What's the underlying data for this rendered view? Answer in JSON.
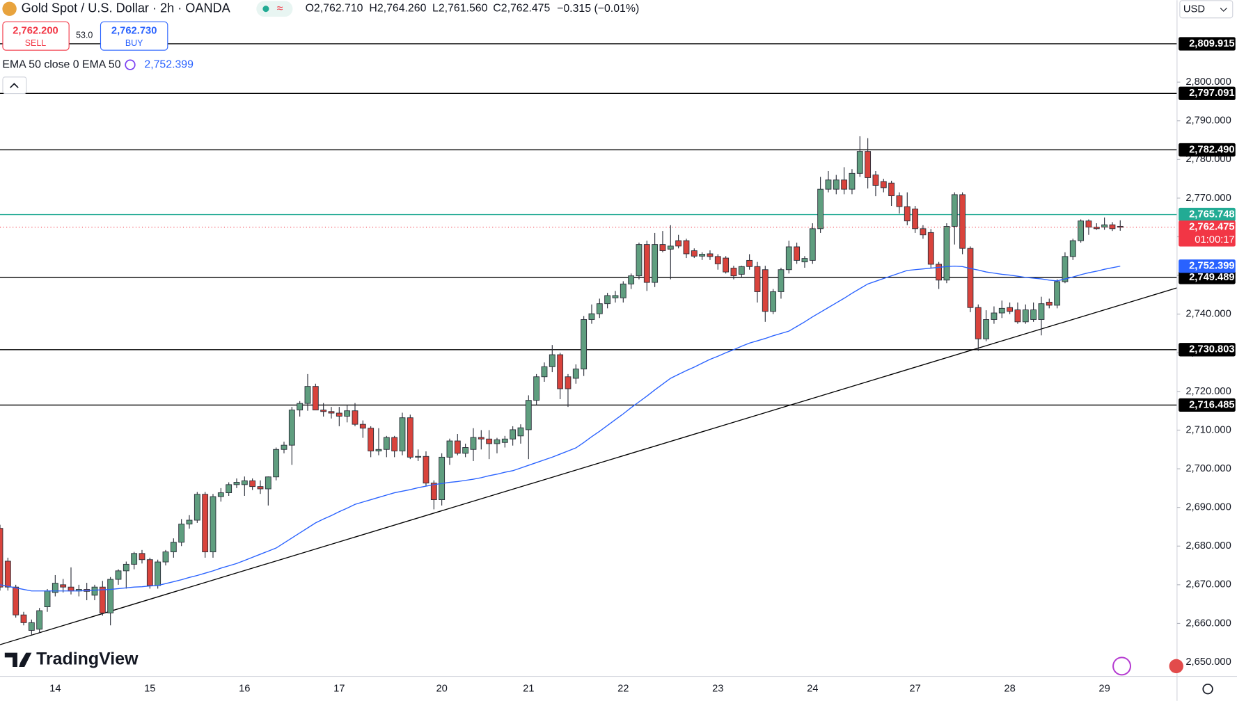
{
  "header": {
    "symbol": "Gold Spot / U.S. Dollar · 2h · OANDA",
    "ohlc": [
      {
        "key": "O",
        "value": "2,762.710"
      },
      {
        "key": "H",
        "value": "2,764.260"
      },
      {
        "key": "L",
        "value": "2,761.560"
      },
      {
        "key": "C",
        "value": "2,762.475"
      }
    ],
    "change": "−0.315 (−0.01%)",
    "sell_price": "2,762.200",
    "sell_label": "SELL",
    "spread": "53.0",
    "buy_price": "2,762.730",
    "buy_label": "BUY",
    "indicator": "EMA 50 close 0 EMA 50",
    "indicator_value": "2,752.399",
    "currency": "USD",
    "brand": "TradingView"
  },
  "chart_data": {
    "type": "candlestick",
    "categories": [
      null,
      null,
      null,
      null,
      null,
      null,
      null,
      "14",
      null,
      null,
      null,
      null,
      null,
      null,
      null,
      null,
      null,
      null,
      null,
      "15",
      null,
      null,
      null,
      null,
      null,
      null,
      null,
      null,
      null,
      null,
      null,
      "16",
      null,
      null,
      null,
      null,
      null,
      null,
      null,
      null,
      null,
      null,
      null,
      "17",
      null,
      null,
      null,
      null,
      null,
      null,
      null,
      null,
      null,
      null,
      null,
      null,
      "20",
      null,
      null,
      null,
      null,
      null,
      null,
      null,
      null,
      null,
      null,
      "21",
      null,
      null,
      null,
      null,
      null,
      null,
      null,
      null,
      null,
      null,
      null,
      "22",
      null,
      null,
      null,
      null,
      null,
      null,
      null,
      null,
      null,
      null,
      null,
      "23",
      null,
      null,
      null,
      null,
      null,
      null,
      null,
      null,
      null,
      null,
      null,
      "24",
      null,
      null,
      null,
      null,
      null,
      null,
      null,
      null,
      null,
      null,
      null,
      null,
      "27",
      null,
      null,
      null,
      null,
      null,
      null,
      null,
      null,
      null,
      null,
      null,
      "28",
      null,
      null,
      null,
      null,
      null,
      null,
      null,
      null,
      null,
      null,
      null,
      "29",
      null,
      null
    ],
    "open": [
      2684.6,
      2676.1,
      2669.4,
      2662.2,
      2658.2,
      2658.5,
      2664.3,
      2668,
      2670,
      2669.4,
      2668.4,
      2668.8,
      2667.3,
      2669.4,
      2662.7,
      2671.4,
      2673.6,
      2675.3,
      2678.1,
      2676.5,
      2669.8,
      2675.9,
      2678.5,
      2681,
      2685.7,
      2686.7,
      2693.4,
      2678.5,
      2692.8,
      2693.8,
      2695.9,
      2695.9,
      2696.9,
      2695.4,
      2694.8,
      2697.9,
      2705,
      2706.1,
      2715.2,
      2716.9,
      2721.3,
      2715.2,
      2714.8,
      2714.4,
      2713.6,
      2715,
      2711.5,
      2710.5,
      2704.6,
      2705,
      2708.1,
      2704.6,
      2713.2,
      2703,
      2703.2,
      2696.3,
      2692,
      2703,
      2707.2,
      2704,
      2705,
      2708.1,
      2707.7,
      2706.5,
      2706.8,
      2707.7,
      2708.5,
      2710.1,
      2717.7,
      2723.8,
      2726.4,
      2729.5,
      2723.8,
      2723.4,
      2725.8,
      2738.6,
      2740.1,
      2742.7,
      2744.2,
      2744.2,
      2747.8,
      2749.9,
      2758,
      2748.2,
      2758,
      2756.8,
      2759,
      2759,
      2756.4,
      2755,
      2755.6,
      2754.9,
      2754.5,
      2751.9,
      2750.3,
      2753.9,
      2752.3,
      2751.5,
      2740.7,
      2745.8,
      2751.5,
      2757.4,
      2753.5,
      2753.9,
      2762.1,
      2772.3,
      2772.3,
      2774.7,
      2772.3,
      2776.4,
      2782.1,
      2776,
      2774.3,
      2773.9,
      2770.6,
      2767.8,
      2767.2,
      2762.1,
      2761.1,
      2752.9,
      2748.8,
      2762.7,
      2770.9,
      2757,
      2741.7,
      2733.6,
      2738.6,
      2740.3,
      2741.7,
      2741.1,
      2738,
      2738.6,
      2738.6,
      2743.1,
      2742.3,
      2748.4,
      2754.9,
      2759,
      2764.1,
      2762.5,
      2762.5,
      2763.1,
      2762.71
    ],
    "high": [
      2685.5,
      2677,
      2670,
      2663,
      2661,
      2664,
      2668.9,
      2672.5,
      2671.5,
      2674.5,
      2670,
      2670.5,
      2670,
      2671,
      2672,
      2674,
      2676,
      2678.5,
      2679,
      2677,
      2676.5,
      2679,
      2682,
      2687,
      2688,
      2694,
      2694,
      2693.5,
      2695,
      2696.5,
      2697.5,
      2698,
      2697.5,
      2697,
      2698,
      2705.5,
      2707,
      2716,
      2717.5,
      2724.5,
      2722,
      2717,
      2716,
      2716,
      2716.5,
      2717,
      2712.5,
      2711,
      2710.5,
      2708.5,
      2708.5,
      2714.5,
      2714,
      2705,
      2704.5,
      2697,
      2704,
      2707.8,
      2709,
      2706.5,
      2710.5,
      2710,
      2710,
      2708,
      2708.5,
      2711,
      2711.5,
      2719,
      2724.5,
      2727.5,
      2732,
      2730,
      2724.5,
      2727,
      2739.5,
      2742.5,
      2744,
      2745.5,
      2746,
      2748.5,
      2750.5,
      2758.5,
      2759,
      2761,
      2761.5,
      2763,
      2760.5,
      2759.5,
      2757,
      2756,
      2756.5,
      2755.5,
      2755,
      2752.5,
      2752.5,
      2755.5,
      2753.5,
      2752.5,
      2746.5,
      2752,
      2759,
      2758.5,
      2755,
      2763.5,
      2775.5,
      2777,
      2776,
      2778,
      2777.5,
      2786,
      2785.5,
      2777,
      2775,
      2774.5,
      2771.5,
      2771.5,
      2768,
      2763,
      2762,
      2753.5,
      2763.5,
      2771.5,
      2771.5,
      2757.5,
      2742.5,
      2741,
      2742,
      2743.5,
      2743,
      2743,
      2742.5,
      2743,
      2744.5,
      2744,
      2749,
      2756,
      2759.5,
      2764.5,
      2764.5,
      2763.5,
      2765,
      2763.8,
      2764.26
    ],
    "low": [
      2668.5,
      2668.5,
      2661.5,
      2659.5,
      2657,
      2657.5,
      2663,
      2667,
      2668,
      2667.5,
      2667,
      2666,
      2666,
      2662,
      2659.5,
      2670,
      2669,
      2674,
      2675.5,
      2669,
      2669,
      2675,
      2677,
      2680,
      2684.5,
      2686,
      2677,
      2677,
      2691.5,
      2693,
      2695,
      2693,
      2694.5,
      2693.5,
      2690.5,
      2697,
      2704,
      2701,
      2713.5,
      2715,
      2715.5,
      2713.5,
      2713,
      2711,
      2712,
      2711,
      2708,
      2703,
      2703.5,
      2703,
      2703,
      2703.5,
      2702.5,
      2702,
      2695.5,
      2689.5,
      2690.5,
      2701,
      2703.5,
      2703,
      2702,
      2705,
      2702.5,
      2704,
      2705.5,
      2706,
      2706.5,
      2702.5,
      2716.5,
      2722.5,
      2725,
      2718,
      2716,
      2722,
      2724,
      2737.5,
      2739,
      2741.5,
      2743,
      2743,
      2746.5,
      2749,
      2746,
      2747,
      2756,
      2749,
      2757,
      2754.5,
      2754.5,
      2754,
      2754,
      2751.5,
      2750.5,
      2749,
      2749.5,
      2751.5,
      2743,
      2738,
      2740,
      2744,
      2750.5,
      2753,
      2752,
      2753,
      2761,
      2771.5,
      2771,
      2771,
      2771,
      2775.5,
      2772.5,
      2770.5,
      2771.5,
      2768,
      2766,
      2763,
      2761,
      2759.5,
      2752,
      2746.5,
      2748,
      2758,
      2755.5,
      2740.5,
      2730.5,
      2733,
      2737.5,
      2739,
      2740,
      2737.5,
      2737.5,
      2738,
      2734.5,
      2741.5,
      2741.5,
      2748,
      2754,
      2758.5,
      2760.5,
      2761.8,
      2761.8,
      2761.5,
      2761.56
    ],
    "close": [
      2669.4,
      2669.4,
      2662.2,
      2660.2,
      2660.2,
      2663.3,
      2668.4,
      2670.4,
      2669.4,
      2668.4,
      2668.8,
      2668.3,
      2669.4,
      2662.7,
      2671.4,
      2673.6,
      2675.3,
      2678.1,
      2676.5,
      2669.8,
      2675.9,
      2678.5,
      2681,
      2685.7,
      2686.7,
      2693.4,
      2678.5,
      2692.8,
      2693.8,
      2695.9,
      2696.5,
      2696.9,
      2695.4,
      2694.8,
      2697.9,
      2705,
      2706.1,
      2715.2,
      2716.9,
      2721.3,
      2715.2,
      2714.8,
      2714.4,
      2713.6,
      2715,
      2711.5,
      2710.5,
      2704.6,
      2705,
      2708.1,
      2704.6,
      2713.2,
      2703,
      2703.2,
      2696.3,
      2692,
      2703,
      2707.2,
      2704,
      2705.5,
      2708.1,
      2707.7,
      2706.5,
      2707.5,
      2707.7,
      2710.1,
      2710.6,
      2717.7,
      2723.8,
      2726.4,
      2729.5,
      2720.7,
      2720.7,
      2725.8,
      2738.6,
      2740.1,
      2742.7,
      2744.8,
      2744.8,
      2747.8,
      2749.9,
      2758,
      2748.2,
      2758,
      2756.4,
      2757.6,
      2757.6,
      2755.6,
      2755,
      2755.5,
      2754.9,
      2753,
      2750.9,
      2749.9,
      2752.3,
      2752.3,
      2745.8,
      2740.7,
      2745.8,
      2751.5,
      2757.4,
      2753.9,
      2754.4,
      2762.1,
      2772.3,
      2774.7,
      2774.7,
      2772.3,
      2776.4,
      2782.1,
      2775.3,
      2773.3,
      2772.7,
      2770.6,
      2767.8,
      2764.1,
      2762.1,
      2760.5,
      2752.9,
      2748.8,
      2762.7,
      2770.9,
      2757,
      2741.7,
      2733.6,
      2738.6,
      2740.3,
      2741.5,
      2740.7,
      2738,
      2741.1,
      2741.1,
      2742.7,
      2742.3,
      2748.4,
      2754.9,
      2759,
      2764.1,
      2762.5,
      2762.1,
      2763.1,
      2762.1,
      2762.475
    ],
    "up_color": "#5f9e7f",
    "down_color": "#d9433c",
    "ema": {
      "color": "#2962ff",
      "last_label": "2,752.399",
      "values": [
        2670,
        2669.6,
        2669.2,
        2668.8,
        2668.4,
        2668.4,
        2668.4,
        2668.4,
        2668.4,
        2668.4,
        2668.4,
        2668.5,
        2668.6,
        2668.7,
        2668.8,
        2669,
        2669.2,
        2669.4,
        2669.5,
        2669.7,
        2669.8,
        2670.3,
        2670.8,
        2671.3,
        2671.9,
        2672.4,
        2673,
        2673.6,
        2674.3,
        2674.9,
        2675.5,
        2676.3,
        2677.1,
        2677.9,
        2678.7,
        2679.5,
        2680.8,
        2682.1,
        2683.4,
        2684.7,
        2686,
        2687,
        2687.9,
        2688.9,
        2689.8,
        2690.8,
        2691.4,
        2692,
        2692.6,
        2693.2,
        2693.8,
        2694.2,
        2694.6,
        2695.1,
        2695.5,
        2695.9,
        2696.2,
        2696.5,
        2696.7,
        2697,
        2697.3,
        2697.7,
        2698.2,
        2698.6,
        2699.1,
        2699.5,
        2700.2,
        2700.9,
        2701.6,
        2702.3,
        2703,
        2703.8,
        2704.6,
        2705.4,
        2706.8,
        2708.3,
        2709.7,
        2711.2,
        2712.7,
        2714.2,
        2715.8,
        2717.3,
        2718.8,
        2720.4,
        2721.9,
        2723.4,
        2724.4,
        2725.4,
        2726.3,
        2727.3,
        2728.3,
        2729.1,
        2730,
        2730.8,
        2731.7,
        2732.5,
        2733.1,
        2733.7,
        2734.4,
        2735,
        2735.6,
        2736.8,
        2738,
        2739.3,
        2740.5,
        2741.7,
        2742.9,
        2744.1,
        2745.4,
        2746.6,
        2747.8,
        2748.5,
        2749.2,
        2749.9,
        2750.6,
        2751.3,
        2751.5,
        2751.7,
        2751.9,
        2752.1,
        2752.3,
        2752.4,
        2752.3,
        2751.8,
        2751.4,
        2750.9,
        2750.6,
        2750.3,
        2750.1,
        2749.8,
        2749.5,
        2749.3,
        2749.1,
        2748.8,
        2748.6,
        2749.1,
        2749.6,
        2750.2,
        2750.7,
        2751.1,
        2751.6,
        2752,
        2752.399
      ]
    },
    "levels": [
      {
        "value": 2809.915,
        "label": "2,809.915",
        "color": "#000000"
      },
      {
        "value": 2797.091,
        "label": "2,797.091",
        "color": "#000000"
      },
      {
        "value": 2782.49,
        "label": "2,782.490",
        "color": "#000000"
      },
      {
        "value": 2765.748,
        "label": "2,765.748",
        "color": "#22ab94"
      },
      {
        "value": 2749.489,
        "label": "2,749.489",
        "color": "#000000"
      },
      {
        "value": 2730.803,
        "label": "2,730.803",
        "color": "#000000"
      },
      {
        "value": 2716.485,
        "label": "2,716.485",
        "color": "#000000"
      }
    ],
    "current_price": {
      "value": 2762.475,
      "label": "2,762.475",
      "countdown": "01:00:17",
      "color": "#f23645"
    },
    "trendline": {
      "color": "#000000",
      "values": [
        2654.5,
        2746.8
      ]
    },
    "ylim": [
      2646.3,
      2821.2
    ],
    "yticks": [
      {
        "value": 2650,
        "label": "2,650.000"
      },
      {
        "value": 2660,
        "label": "2,660.000"
      },
      {
        "value": 2670,
        "label": "2,670.000"
      },
      {
        "value": 2680,
        "label": "2,680.000"
      },
      {
        "value": 2690,
        "label": "2,690.000"
      },
      {
        "value": 2700,
        "label": "2,700.000"
      },
      {
        "value": 2710,
        "label": "2,710.000"
      },
      {
        "value": 2720,
        "label": "2,720.000"
      },
      {
        "value": 2730,
        "label": "2,730.000"
      },
      {
        "value": 2740,
        "label": "2,740.000"
      },
      {
        "value": 2750,
        "label": "2,750.000"
      },
      {
        "value": 2760,
        "label": "2,760.000"
      },
      {
        "value": 2770,
        "label": "2,770.000"
      },
      {
        "value": 2780,
        "label": "2,780.000"
      },
      {
        "value": 2790,
        "label": "2,790.000"
      },
      {
        "value": 2800,
        "label": "2,800.000"
      }
    ]
  }
}
